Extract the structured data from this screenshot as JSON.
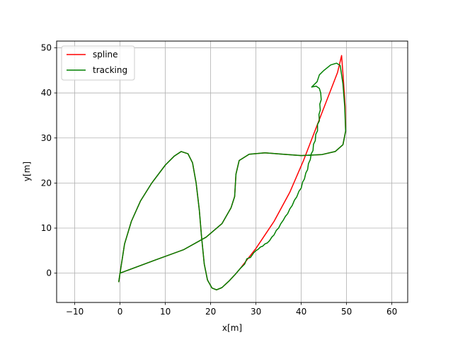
{
  "chart_data": {
    "type": "line",
    "xlabel": "x[m]",
    "ylabel": "y[m]",
    "xlim": [
      -14,
      63.5
    ],
    "ylim": [
      -6.5,
      51.5
    ],
    "xticks": [
      -10,
      0,
      10,
      20,
      30,
      40,
      50,
      60
    ],
    "yticks": [
      0,
      10,
      20,
      30,
      40,
      50
    ],
    "grid": true,
    "legend_position": "top-left",
    "series": [
      {
        "name": "spline",
        "color": "#ff0000",
        "points": [
          [
            -0.3,
            -2.0
          ],
          [
            0.0,
            0.0
          ],
          [
            1.0,
            6.5
          ],
          [
            2.5,
            11.5
          ],
          [
            4.5,
            16.0
          ],
          [
            7.0,
            20.0
          ],
          [
            10.0,
            24.0
          ],
          [
            12.0,
            26.0
          ],
          [
            13.5,
            27.0
          ],
          [
            15.0,
            26.5
          ],
          [
            16.0,
            24.5
          ],
          [
            16.8,
            20.0
          ],
          [
            17.5,
            14.0
          ],
          [
            18.0,
            8.0
          ],
          [
            18.6,
            2.0
          ],
          [
            19.3,
            -1.5
          ],
          [
            20.3,
            -3.3
          ],
          [
            21.3,
            -3.7
          ],
          [
            22.5,
            -3.2
          ],
          [
            24.0,
            -1.8
          ],
          [
            25.5,
            -0.2
          ],
          [
            26.5,
            1.0
          ],
          [
            30.0,
            5.5
          ],
          [
            34.0,
            11.5
          ],
          [
            37.5,
            18.0
          ],
          [
            40.5,
            25.0
          ],
          [
            43.0,
            31.5
          ],
          [
            45.5,
            38.0
          ],
          [
            48.0,
            44.5
          ],
          [
            48.9,
            48.3
          ],
          [
            49.3,
            43.0
          ],
          [
            49.7,
            37.0
          ],
          [
            49.8,
            31.5
          ],
          [
            49.2,
            28.5
          ],
          [
            47.5,
            27.0
          ],
          [
            44.5,
            26.3
          ],
          [
            40.0,
            26.1
          ],
          [
            36.0,
            26.4
          ],
          [
            32.0,
            26.7
          ],
          [
            28.5,
            26.4
          ],
          [
            26.3,
            25.0
          ],
          [
            25.6,
            22.0
          ],
          [
            25.3,
            17.0
          ],
          [
            24.5,
            14.5
          ],
          [
            22.5,
            11.0
          ],
          [
            19.0,
            8.0
          ],
          [
            14.0,
            5.2
          ],
          [
            8.0,
            3.0
          ],
          [
            0.0,
            0.0
          ]
        ]
      },
      {
        "name": "tracking",
        "color": "#008000",
        "points": [
          [
            -0.3,
            -2.0
          ],
          [
            0.0,
            0.0
          ],
          [
            1.0,
            6.5
          ],
          [
            2.5,
            11.5
          ],
          [
            4.5,
            16.0
          ],
          [
            7.0,
            20.0
          ],
          [
            10.0,
            24.0
          ],
          [
            12.0,
            26.0
          ],
          [
            13.5,
            27.0
          ],
          [
            15.0,
            26.5
          ],
          [
            16.0,
            24.5
          ],
          [
            16.8,
            20.0
          ],
          [
            17.5,
            14.0
          ],
          [
            18.0,
            8.0
          ],
          [
            18.6,
            2.0
          ],
          [
            19.3,
            -1.5
          ],
          [
            20.3,
            -3.3
          ],
          [
            21.3,
            -3.7
          ],
          [
            22.5,
            -3.2
          ],
          [
            24.0,
            -1.8
          ],
          [
            25.5,
            -0.2
          ],
          [
            26.5,
            1.0
          ],
          [
            27.5,
            2.0
          ],
          [
            28.0,
            3.2
          ],
          [
            28.8,
            3.5
          ],
          [
            29.5,
            4.5
          ],
          [
            30.0,
            5.0
          ],
          [
            30.5,
            5.3
          ],
          [
            31.0,
            5.8
          ],
          [
            31.5,
            6.0
          ],
          [
            32.0,
            6.5
          ],
          [
            32.5,
            6.7
          ],
          [
            33.0,
            7.2
          ],
          [
            33.5,
            8.0
          ],
          [
            34.0,
            8.5
          ],
          [
            34.5,
            9.5
          ],
          [
            35.0,
            10.0
          ],
          [
            35.5,
            11.0
          ],
          [
            36.0,
            11.7
          ],
          [
            36.5,
            12.6
          ],
          [
            37.0,
            13.2
          ],
          [
            37.5,
            14.3
          ],
          [
            38.0,
            15.0
          ],
          [
            38.5,
            16.2
          ],
          [
            39.0,
            16.9
          ],
          [
            39.5,
            18.2
          ],
          [
            40.0,
            18.9
          ],
          [
            40.3,
            20.2
          ],
          [
            40.7,
            20.9
          ],
          [
            41.0,
            22.2
          ],
          [
            41.4,
            23.0
          ],
          [
            41.6,
            24.3
          ],
          [
            42.0,
            25.2
          ],
          [
            42.2,
            26.5
          ],
          [
            42.6,
            27.2
          ],
          [
            42.7,
            28.6
          ],
          [
            43.1,
            29.4
          ],
          [
            43.2,
            30.8
          ],
          [
            43.6,
            31.6
          ],
          [
            43.6,
            33.0
          ],
          [
            44.0,
            33.8
          ],
          [
            43.9,
            35.2
          ],
          [
            44.2,
            36.2
          ],
          [
            44.1,
            37.5
          ],
          [
            44.4,
            38.5
          ],
          [
            44.3,
            40.0
          ],
          [
            44.0,
            41.0
          ],
          [
            43.3,
            41.5
          ],
          [
            42.3,
            41.3
          ],
          [
            43.5,
            42.5
          ],
          [
            44.0,
            44.0
          ],
          [
            45.0,
            45.0
          ],
          [
            46.5,
            46.2
          ],
          [
            47.8,
            46.6
          ],
          [
            48.6,
            46.1
          ],
          [
            49.2,
            42.0
          ],
          [
            49.6,
            37.0
          ],
          [
            49.8,
            31.5
          ],
          [
            49.2,
            28.5
          ],
          [
            47.5,
            27.0
          ],
          [
            44.5,
            26.3
          ],
          [
            40.0,
            26.1
          ],
          [
            36.0,
            26.4
          ],
          [
            32.0,
            26.7
          ],
          [
            28.5,
            26.4
          ],
          [
            26.3,
            25.0
          ],
          [
            25.6,
            22.0
          ],
          [
            25.3,
            17.0
          ],
          [
            24.5,
            14.5
          ],
          [
            22.5,
            11.0
          ],
          [
            19.0,
            8.0
          ],
          [
            14.0,
            5.2
          ],
          [
            8.0,
            3.0
          ],
          [
            0.0,
            0.0
          ]
        ]
      }
    ]
  }
}
